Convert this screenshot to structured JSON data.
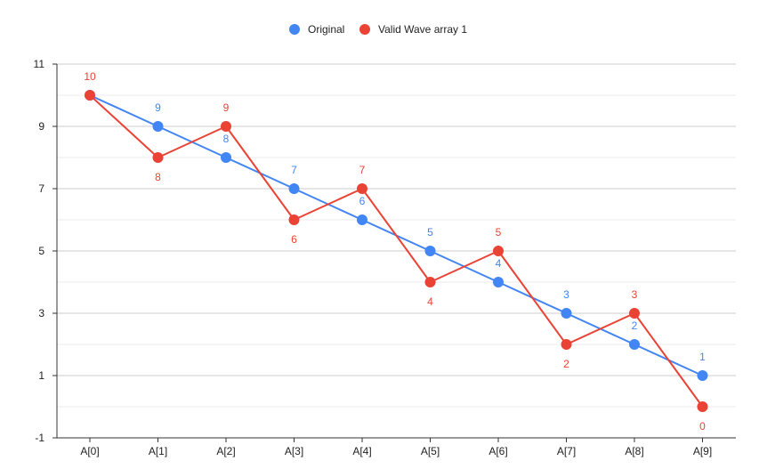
{
  "chart_data": {
    "type": "line",
    "categories": [
      "A[0]",
      "A[1]",
      "A[2]",
      "A[3]",
      "A[4]",
      "A[5]",
      "A[6]",
      "A[7]",
      "A[8]",
      "A[9]"
    ],
    "series": [
      {
        "name": "Original",
        "color": "#4285f4",
        "values": [
          10,
          9,
          8,
          7,
          6,
          5,
          4,
          3,
          2,
          1
        ],
        "label_position": "above"
      },
      {
        "name": "Valid Wave array 1",
        "color": "#ea4335",
        "values": [
          10,
          8,
          9,
          6,
          7,
          4,
          5,
          2,
          3,
          0
        ],
        "label_position": "alternating"
      }
    ],
    "ylim": [
      -1,
      11
    ],
    "y_ticks": [
      "-1",
      "1",
      "3",
      "5",
      "7",
      "9",
      "11"
    ],
    "title": "",
    "xlabel": "",
    "ylabel": "",
    "grid": true,
    "legend_position": "top-center"
  }
}
